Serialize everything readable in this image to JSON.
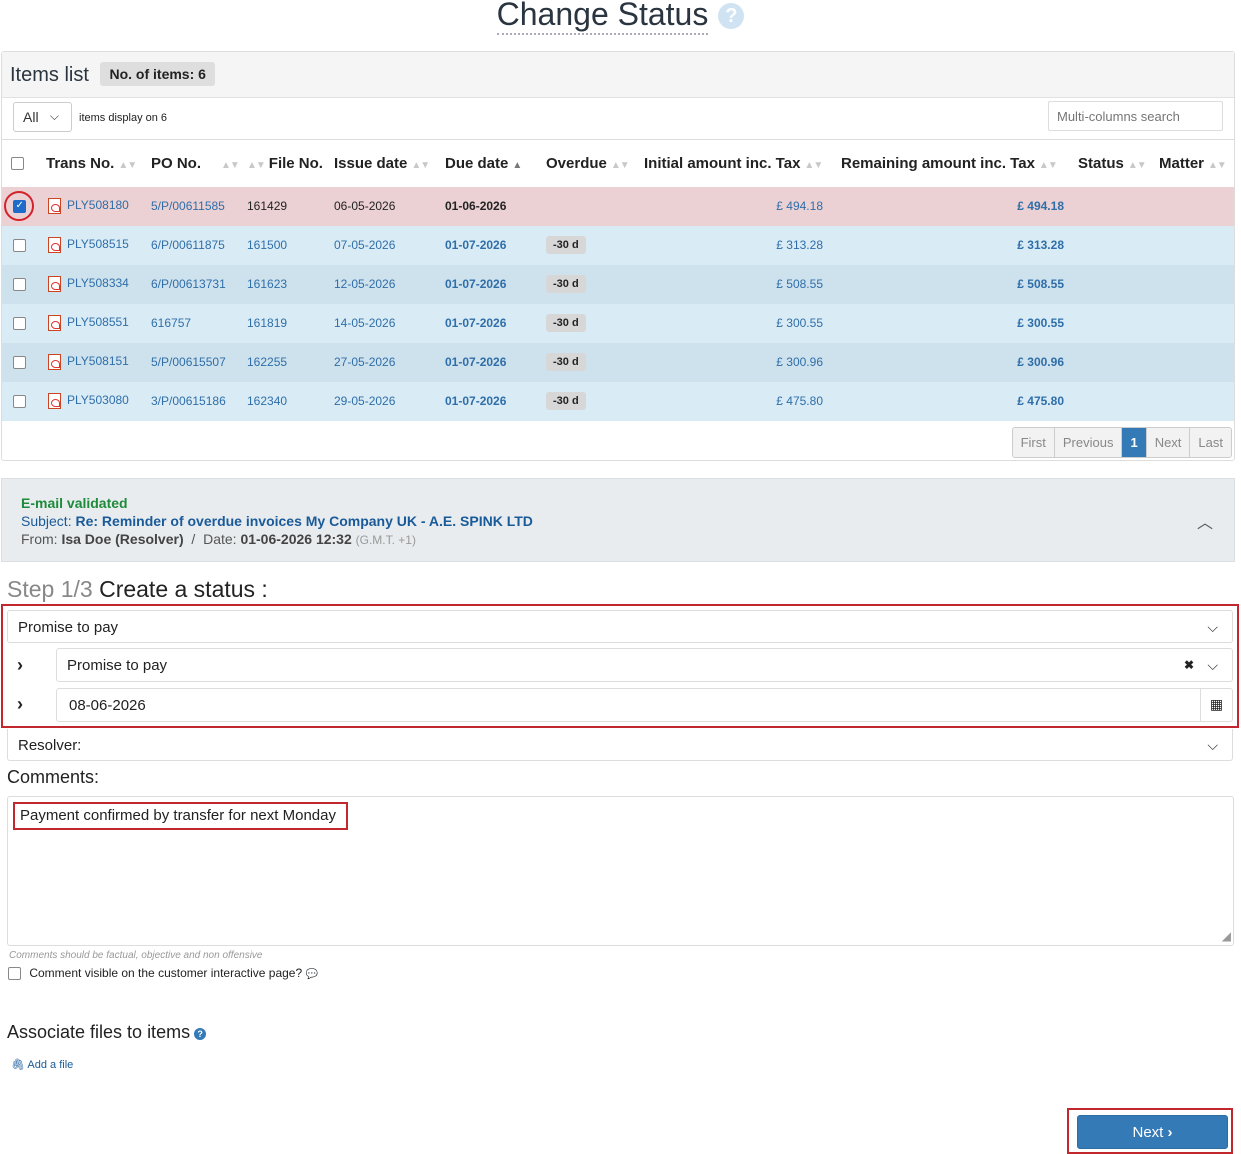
{
  "page": {
    "title": "Change Status",
    "help_icon": "?"
  },
  "items_list": {
    "title": "Items list",
    "count_label": "No. of items: 6",
    "length_select": "All",
    "display_info": "items display on 6",
    "search_placeholder": "Multi-columns search",
    "columns": [
      "Trans No.",
      "PO No.",
      "File No.",
      "Issue date",
      "Due date",
      "Overdue",
      "Initial amount inc. Tax",
      "Remaining amount inc. Tax",
      "Status",
      "Matter"
    ],
    "rows": [
      {
        "checked": true,
        "trans": "PLY508180",
        "po": "5/P/00611585",
        "file": "161429",
        "issue": "06-05-2026",
        "due": "01-06-2026",
        "overdue": "",
        "initial": "£ 494.18",
        "remaining": "£ 494.18",
        "status": "",
        "matter": ""
      },
      {
        "checked": false,
        "trans": "PLY508515",
        "po": "6/P/00611875",
        "file": "161500",
        "issue": "07-05-2026",
        "due": "01-07-2026",
        "overdue": "-30 d",
        "initial": "£ 313.28",
        "remaining": "£ 313.28",
        "status": "",
        "matter": ""
      },
      {
        "checked": false,
        "trans": "PLY508334",
        "po": "6/P/00613731",
        "file": "161623",
        "issue": "12-05-2026",
        "due": "01-07-2026",
        "overdue": "-30 d",
        "initial": "£ 508.55",
        "remaining": "£ 508.55",
        "status": "",
        "matter": ""
      },
      {
        "checked": false,
        "trans": "PLY508551",
        "po": "616757",
        "file": "161819",
        "issue": "14-05-2026",
        "due": "01-07-2026",
        "overdue": "-30 d",
        "initial": "£ 300.55",
        "remaining": "£ 300.55",
        "status": "",
        "matter": ""
      },
      {
        "checked": false,
        "trans": "PLY508151",
        "po": "5/P/00615507",
        "file": "162255",
        "issue": "27-05-2026",
        "due": "01-07-2026",
        "overdue": "-30 d",
        "initial": "£ 300.96",
        "remaining": "£ 300.96",
        "status": "",
        "matter": ""
      },
      {
        "checked": false,
        "trans": "PLY503080",
        "po": "3/P/00615186",
        "file": "162340",
        "issue": "29-05-2026",
        "due": "01-07-2026",
        "overdue": "-30 d",
        "initial": "£ 475.80",
        "remaining": "£ 475.80",
        "status": "",
        "matter": ""
      }
    ],
    "pagination": {
      "first": "First",
      "previous": "Previous",
      "current": "1",
      "next": "Next",
      "last": "Last"
    }
  },
  "email": {
    "validated": "E-mail validated",
    "subject_label": "Subject:",
    "subject": "Re: Reminder of overdue invoices My Company UK - A.E. SPINK LTD",
    "from_label": "From:",
    "from": "Isa Doe (Resolver)",
    "separator": "/",
    "date_label": "Date:",
    "date": "01-06-2026 12:32",
    "timezone": "(G.M.T. +1)"
  },
  "step": {
    "number": "Step 1/3",
    "title": "Create a status :",
    "status_type": "Promise to pay",
    "sub_status": "Promise to pay",
    "promise_date": "08-06-2026",
    "resolver": "Resolver:"
  },
  "comments": {
    "label": "Comments:",
    "text": "Payment confirmed by transfer for next Monday",
    "hint": "Comments should be factual, objective and non offensive",
    "visible_label": "Comment visible on the customer interactive page?"
  },
  "files": {
    "title": "Associate files to items",
    "add_file": "Add a file"
  },
  "actions": {
    "next": "Next"
  }
}
